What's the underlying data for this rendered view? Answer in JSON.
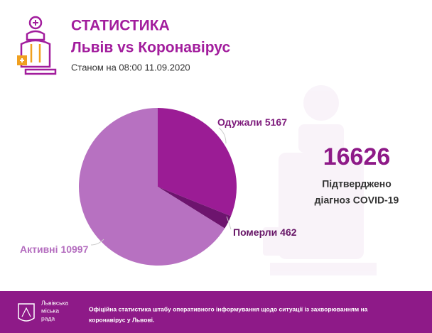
{
  "header": {
    "title": "СТАТИСТИКА",
    "subtitle": "Львів vs Коронавірус",
    "date": "Станом на 08:00 11.09.2020"
  },
  "chart_data": {
    "type": "pie",
    "categories": [
      "Одужали",
      "Померли",
      "Активні"
    ],
    "values": [
      5167,
      462,
      10997
    ],
    "colors": [
      "#9b1c95",
      "#6d146e",
      "#b771c1"
    ],
    "label_colors": [
      "#7d1a7b",
      "#661466",
      "#b46dbf"
    ]
  },
  "summary": {
    "total": 16626,
    "caption": [
      "Підтверджено",
      "діагноз COVID-19"
    ]
  },
  "footer": {
    "logo": [
      "Львівська",
      "міська",
      "рада"
    ],
    "text": [
      "Офіційна статистика штабу оперативного інформування щодо ситуації із захворюванням на",
      "коронавірус у Львові."
    ]
  }
}
